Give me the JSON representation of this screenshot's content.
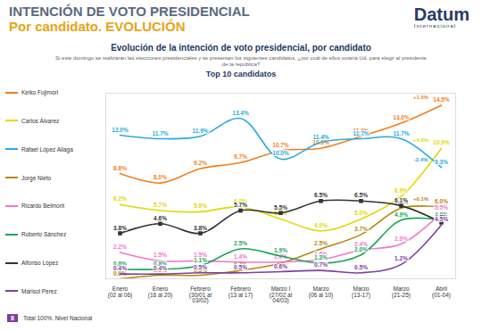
{
  "header": {
    "title": "INTENCIÓN DE VOTO PRESIDENCIAL",
    "subtitle": "Por candidato. EVOLUCIÓN",
    "logo": "Datum",
    "logo_sub": "Internacional"
  },
  "footer": {
    "page": "8",
    "note": "Total 100%. Nivel Nacional"
  },
  "chart_data": {
    "type": "line",
    "title": "Evolución de la intención de voto presidencial, por candidato",
    "subtitle": "Si este domingo se realizaran las elecciones presidenciales y se presentan los siguientes candidatos, ¿por cuál de ellos votaría Ud. para elegir al presidente de la república?",
    "heading": "Top 10 candidatos",
    "categories": [
      "Enero (02 al 06)",
      "Enero (16 al 20)",
      "Febrero (30/01 al 03/02)",
      "Febrero (13 al 17)",
      "Marzo I (27/02 al 04/03)",
      "Marzo (06 al 10)",
      "Marzo (13-17)",
      "Marzo (21-25)",
      "Abril (01-04)"
    ],
    "ylim": [
      0,
      15.5
    ],
    "tick_labels": "x",
    "grid": false,
    "legend": "left",
    "data_labels": true,
    "series": [
      {
        "name": "Keiko Fujimori",
        "color": "#f07f1e",
        "marker": "none",
        "values": [
          8.8,
          8.0,
          9.2,
          9.7,
          10.7,
          10.9,
          11.9,
          13.0,
          14.5
        ],
        "value_labels": [
          "8.8%",
          "8.0%",
          "9.2%",
          "9.7%",
          "10.7%",
          "10.9%",
          "11.9%",
          "13.0%",
          "14.5%"
        ]
      },
      {
        "name": "Carlos Álvarez",
        "color": "#e3d800",
        "marker": "none",
        "values": [
          6.2,
          5.7,
          5.6,
          6.0,
          5.0,
          4.0,
          5.0,
          6.9,
          10.9
        ],
        "value_labels": [
          "6.2%",
          "5.7%",
          "5.6%",
          "6.0%",
          "5.0%",
          "4.0%",
          "5.0%",
          "6.9%",
          "10.9%"
        ]
      },
      {
        "name": "Rafael López Aliaga",
        "color": "#29a9e0",
        "marker": "none",
        "values": [
          12.0,
          11.7,
          11.9,
          13.4,
          10.0,
          11.4,
          11.7,
          11.7,
          9.3
        ],
        "value_labels": [
          "12.0%",
          "11.7%",
          "11.9%",
          "13.4%",
          "10.0%",
          "11.4%",
          "11.7%",
          "11.7%",
          "9.3%"
        ]
      },
      {
        "name": "Jorge Nieto",
        "color": "#b8860b",
        "marker": "none",
        "values": [
          0.0,
          0.3,
          0.3,
          0.7,
          1.3,
          2.5,
          3.7,
          5.9,
          6.0
        ],
        "value_labels": [
          "0.0%",
          "0.3%",
          "0.3%",
          "0.7%",
          "1.3%",
          "2.5%",
          "3.7%",
          "5.9%",
          "6.0%"
        ]
      },
      {
        "name": "Ricardo Belmont",
        "color": "#f178c9",
        "marker": "none",
        "values": [
          2.2,
          1.5,
          1.5,
          1.4,
          1.4,
          1.6,
          2.4,
          2.9,
          5.5
        ],
        "value_labels": [
          "2.2%",
          "1.5%",
          "1.5%",
          "1.4%",
          "1.4%",
          "1.6%",
          "2.4%",
          "2.9%",
          "5.5%"
        ]
      },
      {
        "name": "Roberto Sánchez",
        "color": "#1aa55a",
        "marker": "none",
        "values": [
          0.8,
          0.8,
          1.1,
          2.5,
          1.9,
          1.3,
          2.0,
          4.9,
          4.9
        ],
        "value_labels": [
          "0.8%",
          "0.8%",
          "1.1%",
          "2.5%",
          "1.9%",
          "1.3%",
          "2.0%",
          "4.9%",
          "4.9%"
        ]
      },
      {
        "name": "Alfonso López",
        "color": "#333333",
        "marker": "square",
        "values": [
          3.8,
          4.6,
          3.8,
          5.7,
          5.5,
          6.5,
          6.5,
          6.1,
          4.7
        ],
        "value_labels": [
          "3.8%",
          "4.6%",
          "3.8%",
          "5.7%",
          "5.5%",
          "6.5%",
          "6.5%",
          "6.1%",
          "4.7%"
        ]
      },
      {
        "name": "Marisol Pérez",
        "color": "#7b3fa0",
        "marker": "none",
        "values": [
          0.4,
          0.4,
          0.5,
          0.5,
          0.6,
          0.7,
          0.5,
          1.2,
          4.5
        ],
        "value_labels": [
          "0.4%",
          "0.4%",
          "0.5%",
          "0.5%",
          "0.6%",
          "0.7%",
          "0.5%",
          "1.2%",
          "4.5%"
        ]
      }
    ],
    "annotations": [
      {
        "series": "Keiko Fujimori",
        "text": "+1.5%"
      },
      {
        "series": "Carlos Álvarez",
        "text": "+4.0%"
      },
      {
        "series": "Rafael López Aliaga",
        "text": "-2.4%"
      },
      {
        "series": "Jorge Nieto",
        "text": "+0.1%"
      }
    ]
  }
}
